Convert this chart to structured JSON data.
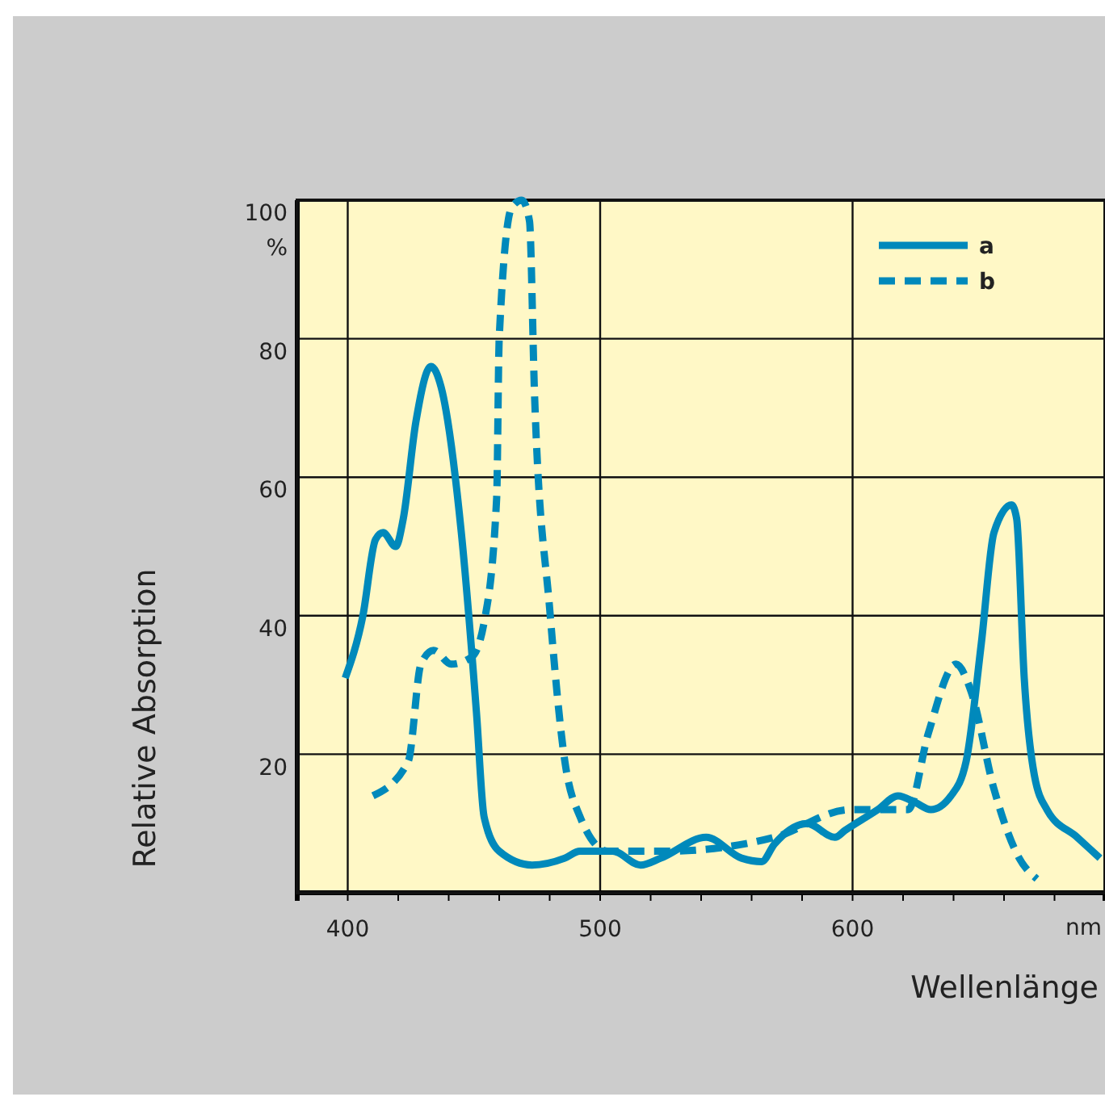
{
  "chart_data": {
    "type": "line",
    "xlabel": "Wellenlänge",
    "ylabel": "Relative Absorption",
    "xlim": [
      380,
      700
    ],
    "ylim": [
      0,
      100
    ],
    "xticks": [
      {
        "value": 380,
        "label": null
      },
      400,
      {
        "value": 420,
        "label": null
      },
      {
        "value": 440,
        "label": null
      },
      {
        "value": 460,
        "label": null
      },
      {
        "value": 480,
        "label": null
      },
      500,
      {
        "value": 520,
        "label": null
      },
      {
        "value": 540,
        "label": null
      },
      {
        "value": 560,
        "label": null
      },
      {
        "value": 580,
        "label": null
      },
      600,
      {
        "value": 620,
        "label": null
      },
      {
        "value": 640,
        "label": null
      },
      {
        "value": 660,
        "label": null
      },
      {
        "value": 680,
        "label": null
      },
      {
        "value": 700,
        "label": null
      }
    ],
    "yticks": [
      20,
      40,
      60,
      80,
      100
    ],
    "grid": true,
    "legend": "top right",
    "annotations": [
      "%",
      "nm"
    ],
    "series": [
      {
        "name": "a",
        "color": "#0089bb",
        "line_style": "solid",
        "x": [
          399,
          406,
          411,
          414,
          419,
          422,
          427,
          433,
          437,
          445,
          451,
          454,
          460,
          473,
          486,
          492,
          505,
          516,
          524,
          542,
          556,
          564,
          569,
          582,
          593,
          597,
          610,
          618,
          625,
          631,
          639,
          645,
          651,
          656,
          663,
          665,
          668,
          672,
          677,
          689,
          698
        ],
        "values": [
          31,
          40,
          51,
          52,
          50,
          54,
          68,
          76,
          73,
          52,
          26,
          11,
          6,
          4,
          5,
          6,
          6,
          4,
          5,
          8,
          5,
          4.5,
          7,
          10,
          8,
          9,
          12,
          14,
          13,
          12,
          14,
          19,
          36,
          52,
          56,
          54,
          31,
          17,
          12,
          8,
          5
        ]
      },
      {
        "name": "b",
        "color": "#0089bb",
        "line_style": "dashed",
        "x": [
          410,
          424,
          429,
          434,
          441,
          449,
          454,
          459,
          460,
          465,
          469,
          472,
          474,
          480,
          486,
          492,
          503,
          526,
          569,
          599,
          622,
          630,
          641,
          647,
          656,
          666,
          673
        ],
        "values": [
          14,
          19,
          33,
          35,
          33,
          34,
          39,
          57,
          80,
          99,
          100,
          97,
          72,
          41,
          19,
          11,
          6,
          6,
          8,
          12,
          12,
          23,
          33,
          29,
          15,
          5,
          2
        ]
      }
    ]
  }
}
